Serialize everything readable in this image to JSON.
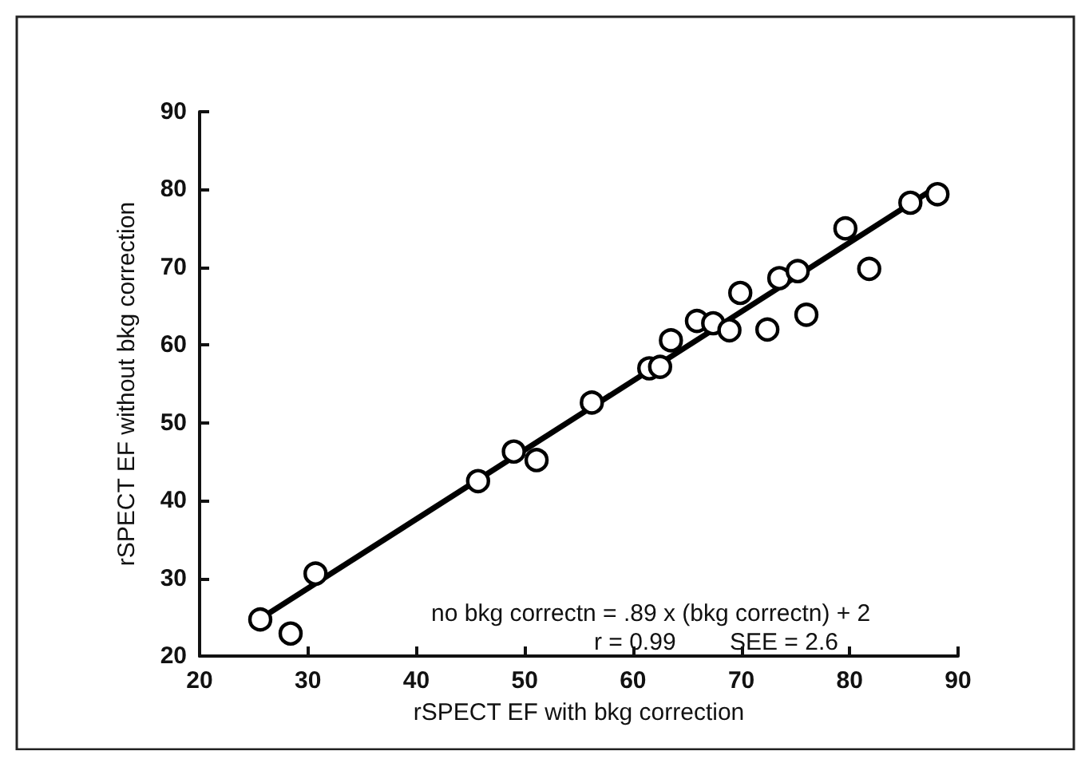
{
  "chart_data": {
    "type": "scatter",
    "xlabel": "rSPECT EF with bkg correction",
    "ylabel": "rSPECT EF without bkg correction",
    "xlim": [
      20,
      90
    ],
    "xticks": [
      20,
      30,
      40,
      50,
      60,
      70,
      80,
      90
    ],
    "ylim": [
      20,
      90
    ],
    "yticks": [
      20,
      30,
      40,
      50,
      60,
      70,
      80,
      90
    ],
    "grid": false,
    "marker": "circle",
    "series": [
      {
        "color": "#000000",
        "x": [
          25.6,
          28.4,
          30.7,
          45.7,
          49.0,
          51.1,
          56.2,
          61.5,
          62.5,
          63.5,
          65.9,
          67.4,
          68.9,
          69.9,
          72.4,
          73.5,
          75.2,
          76.0,
          79.6,
          81.8,
          85.6,
          88.1
        ],
        "values": [
          24.7,
          22.9,
          30.6,
          42.5,
          46.3,
          45.2,
          52.6,
          57.0,
          57.2,
          60.6,
          63.1,
          62.8,
          61.9,
          66.7,
          62.0,
          68.6,
          69.5,
          63.9,
          75.0,
          69.8,
          78.3,
          79.4
        ]
      },
      {
        "type": "line",
        "marker": "none",
        "color": "#000000",
        "x": [
          25.6,
          88.1
        ],
        "values": [
          24.8,
          80.4
        ]
      }
    ],
    "annotations": [
      "no bkg correctn = .89 x (bkg correctn) + 2",
      "r = 0.99",
      "SEE = 2.6"
    ]
  }
}
